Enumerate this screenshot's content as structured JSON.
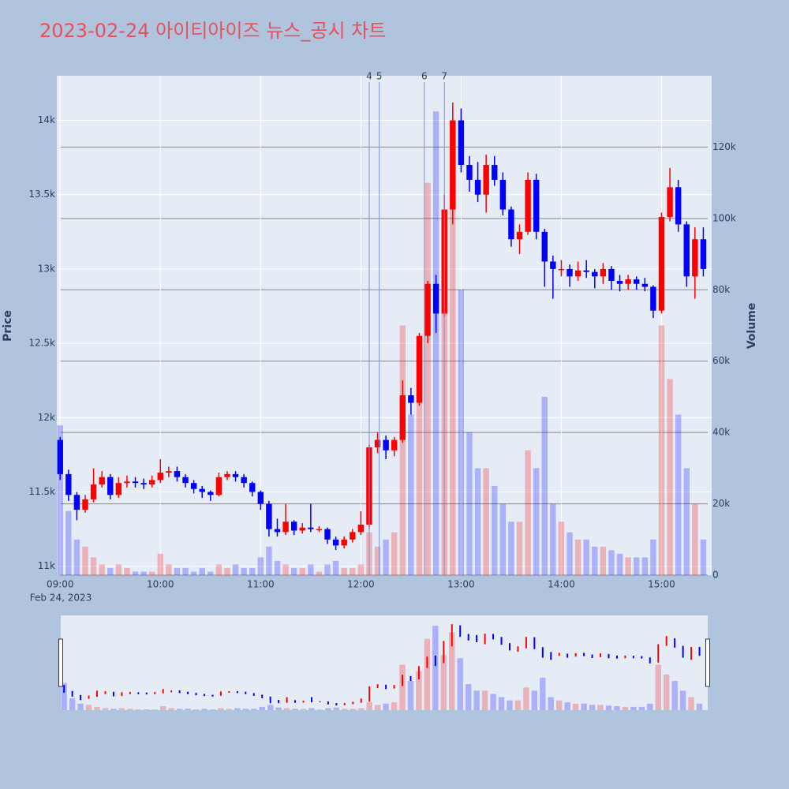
{
  "chart_data": {
    "type": "candlestick",
    "title": "2023-02-24 아이티아이즈 뉴스_공시 차트",
    "y_label": "Price",
    "y2_label": "Volume",
    "x_date_label": "Feb 24, 2023",
    "up_color": "#ff0000",
    "down_color": "#0000ff",
    "x": [
      "09:00",
      "09:05",
      "09:10",
      "09:15",
      "09:20",
      "09:25",
      "09:30",
      "09:35",
      "09:40",
      "09:45",
      "09:50",
      "09:55",
      "10:00",
      "10:05",
      "10:10",
      "10:15",
      "10:20",
      "10:25",
      "10:30",
      "10:35",
      "10:40",
      "10:45",
      "10:50",
      "10:55",
      "11:00",
      "11:05",
      "11:10",
      "11:15",
      "11:20",
      "11:25",
      "11:30",
      "11:35",
      "11:40",
      "11:45",
      "11:50",
      "11:55",
      "12:00",
      "12:05",
      "12:10",
      "12:15",
      "12:20",
      "12:25",
      "12:30",
      "12:35",
      "12:40",
      "12:45",
      "12:50",
      "12:55",
      "13:00",
      "13:05",
      "13:10",
      "13:15",
      "13:20",
      "13:25",
      "13:30",
      "13:35",
      "13:40",
      "13:45",
      "13:50",
      "13:55",
      "14:00",
      "14:05",
      "14:10",
      "14:15",
      "14:20",
      "14:25",
      "14:30",
      "14:35",
      "14:40",
      "14:45",
      "14:50",
      "14:55",
      "15:00",
      "15:05",
      "15:10",
      "15:15",
      "15:20",
      "15:25"
    ],
    "open": [
      11850,
      11620,
      11480,
      11380,
      11450,
      11550,
      11600,
      11480,
      11560,
      11570,
      11560,
      11550,
      11580,
      11630,
      11640,
      11600,
      11560,
      11520,
      11500,
      11480,
      11600,
      11620,
      11600,
      11560,
      11500,
      11420,
      11250,
      11230,
      11300,
      11240,
      11260,
      11250,
      11250,
      11180,
      11140,
      11180,
      11230,
      11280,
      11800,
      11850,
      11780,
      11850,
      12150,
      12100,
      12550,
      12900,
      12700,
      13400,
      14000,
      13700,
      13600,
      13500,
      13700,
      13600,
      13400,
      13200,
      13250,
      13600,
      13250,
      13050,
      13000,
      13000,
      12950,
      12990,
      12980,
      12950,
      13000,
      12920,
      12900,
      12930,
      12900,
      12880,
      12720,
      13350,
      13550,
      13300,
      12950,
      13200
    ],
    "high": [
      11870,
      11650,
      11500,
      11480,
      11660,
      11640,
      11620,
      11600,
      11610,
      11600,
      11590,
      11610,
      11720,
      11670,
      11670,
      11620,
      11580,
      11540,
      11510,
      11630,
      11640,
      11640,
      11620,
      11570,
      11510,
      11440,
      11320,
      11420,
      11310,
      11290,
      11420,
      11270,
      11260,
      11200,
      11200,
      11250,
      11370,
      11820,
      11900,
      11880,
      11870,
      12250,
      12200,
      12570,
      12920,
      12960,
      13500,
      14120,
      14080,
      13760,
      13720,
      13770,
      13760,
      13650,
      13420,
      13300,
      13650,
      13640,
      13270,
      13090,
      13060,
      13030,
      13050,
      13060,
      13000,
      13040,
      13020,
      12960,
      12960,
      12950,
      12940,
      12890,
      13380,
      13680,
      13600,
      13320,
      13280,
      13280
    ],
    "low": [
      11580,
      11440,
      11310,
      11360,
      11430,
      11530,
      11450,
      11460,
      11530,
      11530,
      11520,
      11530,
      11560,
      11600,
      11570,
      11530,
      11490,
      11460,
      11440,
      11470,
      11580,
      11570,
      11530,
      11470,
      11380,
      11200,
      11200,
      11210,
      11210,
      11220,
      11230,
      11230,
      11150,
      11110,
      11120,
      11160,
      11210,
      11250,
      11760,
      11720,
      11740,
      11830,
      12020,
      12080,
      12500,
      12570,
      12680,
      13300,
      13650,
      13520,
      13450,
      13380,
      13560,
      13360,
      13150,
      13100,
      13230,
      13200,
      12880,
      12800,
      12950,
      12880,
      12920,
      12940,
      12870,
      12900,
      12860,
      12850,
      12860,
      12860,
      12850,
      12670,
      12700,
      13320,
      13250,
      12880,
      12800,
      12950
    ],
    "close": [
      11620,
      11480,
      11380,
      11450,
      11550,
      11600,
      11480,
      11560,
      11570,
      11560,
      11550,
      11580,
      11630,
      11640,
      11600,
      11560,
      11520,
      11500,
      11480,
      11600,
      11620,
      11600,
      11560,
      11500,
      11420,
      11250,
      11230,
      11300,
      11240,
      11260,
      11250,
      11250,
      11180,
      11140,
      11180,
      11230,
      11280,
      11800,
      11850,
      11780,
      11850,
      12150,
      12100,
      12550,
      12900,
      12700,
      13400,
      14000,
      13700,
      13600,
      13500,
      13700,
      13600,
      13400,
      13200,
      13250,
      13600,
      13250,
      13050,
      13000,
      13000,
      12950,
      12990,
      12980,
      12950,
      13000,
      12920,
      12900,
      12930,
      12900,
      12880,
      12720,
      13350,
      13550,
      13300,
      12950,
      13200,
      13000
    ],
    "volume": [
      42000,
      18000,
      10000,
      8000,
      5000,
      3000,
      2000,
      3000,
      2000,
      1000,
      1000,
      1000,
      6000,
      3000,
      2000,
      2000,
      1000,
      2000,
      1000,
      3000,
      2000,
      3000,
      2000,
      2000,
      5000,
      8000,
      4000,
      3000,
      2000,
      2000,
      3000,
      1000,
      3000,
      4000,
      2000,
      2000,
      3000,
      12000,
      8000,
      10000,
      12000,
      70000,
      45000,
      60000,
      110000,
      130000,
      85000,
      120000,
      80000,
      40000,
      30000,
      30000,
      25000,
      20000,
      15000,
      15000,
      35000,
      30000,
      50000,
      20000,
      15000,
      12000,
      10000,
      10000,
      8000,
      8000,
      7000,
      6000,
      5000,
      5000,
      5000,
      10000,
      70000,
      55000,
      45000,
      30000,
      20000,
      10000
    ],
    "xlim": [
      "08:58",
      "15:30"
    ],
    "xticks": [
      "09:00",
      "10:00",
      "11:00",
      "12:00",
      "13:00",
      "14:00",
      "15:00"
    ],
    "ylim": [
      10940,
      14300
    ],
    "yticks": [
      {
        "value": 11000,
        "label": "11k"
      },
      {
        "value": 11500,
        "label": "11.5k"
      },
      {
        "value": 12000,
        "label": "12k"
      },
      {
        "value": 12500,
        "label": "12.5k"
      },
      {
        "value": 13000,
        "label": "13k"
      },
      {
        "value": 13500,
        "label": "13.5k"
      },
      {
        "value": 14000,
        "label": "14k"
      }
    ],
    "y2lim": [
      0,
      140000
    ],
    "y2ticks": [
      0,
      {
        "value": 20000,
        "label": "20k"
      },
      {
        "value": 40000,
        "label": "40k"
      },
      {
        "value": 60000,
        "label": "60k"
      },
      {
        "value": 80000,
        "label": "80k"
      },
      {
        "value": 100000,
        "label": "100k"
      },
      {
        "value": 120000,
        "label": "120k"
      }
    ],
    "annotations": [
      {
        "x": "12:05",
        "label": "4"
      },
      {
        "x": "12:11",
        "label": "5"
      },
      {
        "x": "12:38",
        "label": "6"
      },
      {
        "x": "12:50",
        "label": "7"
      }
    ],
    "range_slider": true
  }
}
